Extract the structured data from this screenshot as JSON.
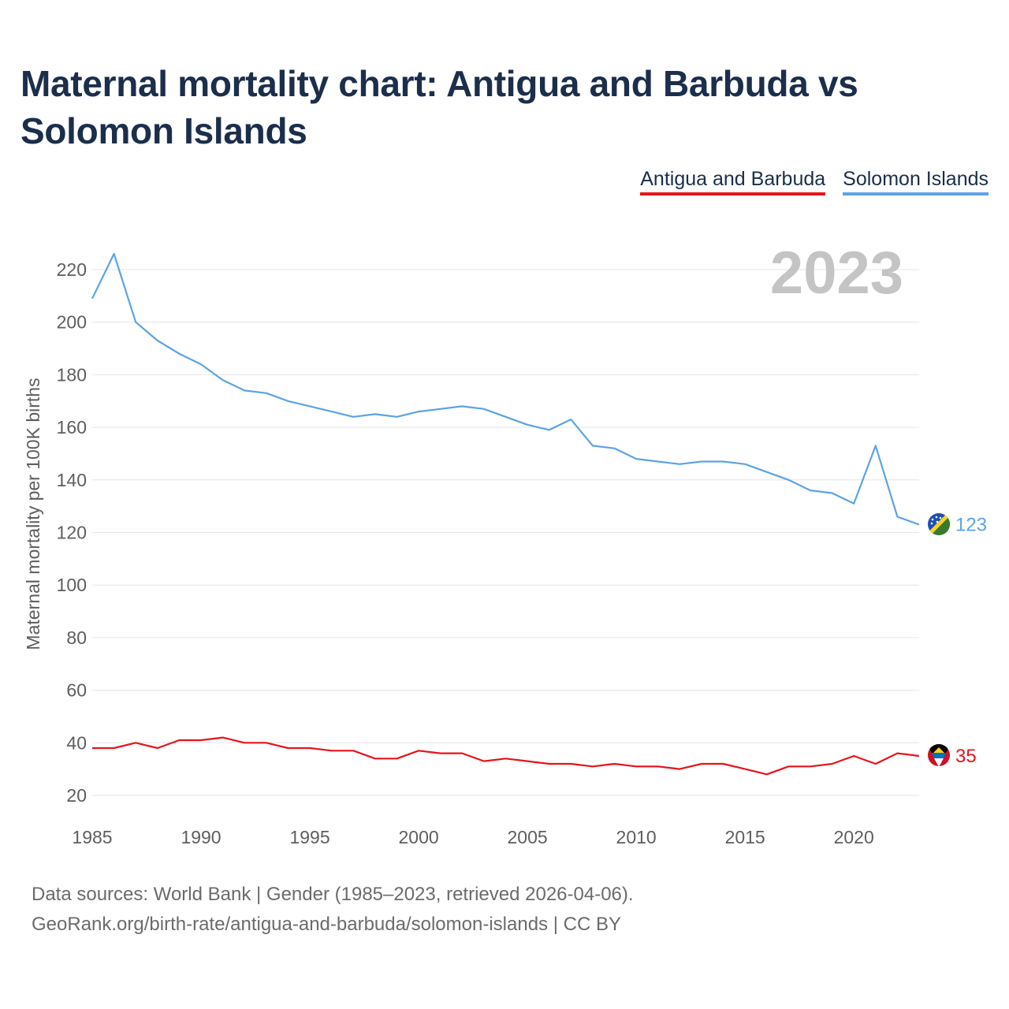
{
  "title": "Maternal mortality chart: Antigua and Barbuda vs Solomon Islands",
  "legend": [
    {
      "name": "Antigua and Barbuda",
      "color": "#e8131b"
    },
    {
      "name": "Solomon Islands",
      "color": "#5ba3e6"
    }
  ],
  "footer": {
    "line1": "Data sources: World Bank | Gender (1985–2023, retrieved 2026-04-06).",
    "line2": "GeoRank.org/birth-rate/antigua-and-barbuda/solomon-islands | CC BY"
  },
  "chart_data": {
    "type": "line",
    "title": "Maternal mortality chart: Antigua and Barbuda vs Solomon Islands",
    "year_label": "2023",
    "xlabel": "",
    "ylabel": "Maternal mortality per 100K births",
    "xlim": [
      1985,
      2023
    ],
    "ylim": [
      20,
      226
    ],
    "x_ticks": [
      1985,
      1990,
      1995,
      2000,
      2005,
      2010,
      2015,
      2020
    ],
    "y_ticks": [
      20,
      40,
      60,
      80,
      100,
      120,
      140,
      160,
      180,
      200,
      220
    ],
    "x": [
      1985,
      1986,
      1987,
      1988,
      1989,
      1990,
      1991,
      1992,
      1993,
      1994,
      1995,
      1996,
      1997,
      1998,
      1999,
      2000,
      2001,
      2002,
      2003,
      2004,
      2005,
      2006,
      2007,
      2008,
      2009,
      2010,
      2011,
      2012,
      2013,
      2014,
      2015,
      2016,
      2017,
      2018,
      2019,
      2020,
      2021,
      2022,
      2023
    ],
    "series": [
      {
        "name": "Solomon Islands",
        "color": "#5ba3e6",
        "end_label": "123",
        "values": [
          209,
          226,
          200,
          193,
          188,
          184,
          178,
          174,
          173,
          170,
          168,
          166,
          164,
          165,
          164,
          166,
          167,
          168,
          167,
          164,
          161,
          159,
          163,
          153,
          152,
          148,
          147,
          146,
          147,
          147,
          146,
          143,
          140,
          136,
          135,
          131,
          153,
          126,
          123
        ]
      },
      {
        "name": "Antigua and Barbuda",
        "color": "#e8131b",
        "end_label": "35",
        "values": [
          38,
          38,
          40,
          38,
          41,
          41,
          42,
          40,
          40,
          38,
          38,
          37,
          37,
          34,
          34,
          37,
          36,
          36,
          33,
          34,
          33,
          32,
          32,
          31,
          32,
          31,
          31,
          30,
          32,
          32,
          30,
          28,
          31,
          31,
          32,
          35,
          32,
          36,
          35
        ]
      }
    ]
  }
}
